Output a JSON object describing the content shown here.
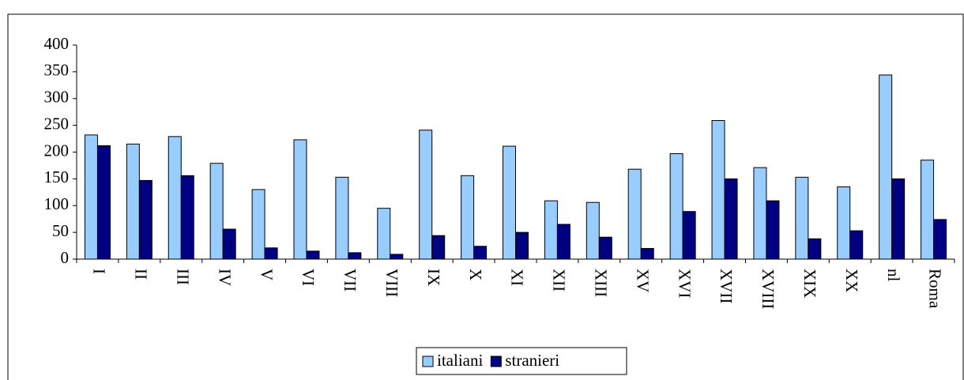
{
  "chart_data": {
    "type": "bar",
    "categories": [
      "I",
      "II",
      "III",
      "IV",
      "V",
      "VI",
      "VII",
      "VIII",
      "IX",
      "X",
      "XI",
      "XII",
      "XIII",
      "XV",
      "XVI",
      "XVII",
      "XVIII",
      "XIX",
      "XX",
      "nl",
      "Roma"
    ],
    "series": [
      {
        "name": "italiani",
        "color": "#99ccff",
        "values": [
          232,
          215,
          229,
          179,
          130,
          223,
          153,
          95,
          241,
          156,
          211,
          109,
          106,
          168,
          197,
          259,
          171,
          153,
          135,
          344,
          185
        ]
      },
      {
        "name": "stranieri",
        "color": "#000080",
        "values": [
          212,
          147,
          156,
          56,
          21,
          15,
          12,
          9,
          44,
          24,
          50,
          65,
          41,
          20,
          89,
          150,
          109,
          38,
          53,
          150,
          74
        ]
      }
    ],
    "ylim": [
      0,
      400
    ],
    "yticks": [
      0,
      50,
      100,
      150,
      200,
      250,
      300,
      350,
      400
    ],
    "legend": "bottom"
  }
}
